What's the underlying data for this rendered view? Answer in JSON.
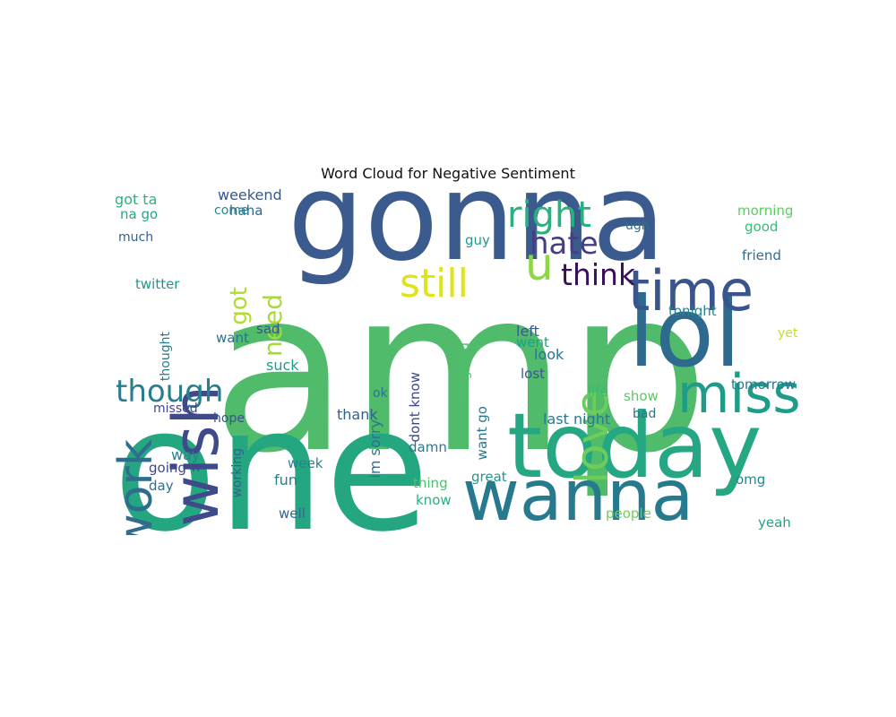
{
  "title": "Word Cloud for Negative Sentiment",
  "words": [
    {
      "text": "amp",
      "color": "#4fbb6b"
    },
    {
      "text": "one",
      "color": "#24a781"
    },
    {
      "text": "gonna",
      "color": "#3b5a8d"
    },
    {
      "text": "today",
      "color": "#26a784"
    },
    {
      "text": "wanna",
      "color": "#277a8e"
    },
    {
      "text": "lol",
      "color": "#2e6a8e"
    },
    {
      "text": "time",
      "color": "#3a548c"
    },
    {
      "text": "miss",
      "color": "#1f9c88"
    },
    {
      "text": "wish",
      "color": "#3e4a89"
    },
    {
      "text": "work",
      "color": "#2f6d8e"
    },
    {
      "text": "still",
      "color": "#dfe318"
    },
    {
      "text": "love",
      "color": "#6ccd5a"
    },
    {
      "text": "right",
      "color": "#2ab07f"
    },
    {
      "text": "hate",
      "color": "#433e85"
    },
    {
      "text": "think",
      "color": "#3a0e5a"
    },
    {
      "text": "u",
      "color": "#8ed645"
    },
    {
      "text": "though",
      "color": "#287d8e"
    },
    {
      "text": "need",
      "color": "#a5db36"
    },
    {
      "text": "got",
      "color": "#b0dd2f"
    },
    {
      "text": "going",
      "color": "#3f4788"
    },
    {
      "text": "twitter",
      "color": "#1f968b"
    },
    {
      "text": "weekend",
      "color": "#39568c"
    },
    {
      "text": "got ta",
      "color": "#2db27d"
    },
    {
      "text": "na go",
      "color": "#22a884"
    },
    {
      "text": "haha",
      "color": "#31668e"
    },
    {
      "text": "come",
      "color": "#24878e"
    },
    {
      "text": "much",
      "color": "#33628d"
    },
    {
      "text": "morning",
      "color": "#5ec962"
    },
    {
      "text": "good",
      "color": "#3aba76"
    },
    {
      "text": "friend",
      "color": "#2e6e8e"
    },
    {
      "text": "tonight",
      "color": "#25848e"
    },
    {
      "text": "tomorrow",
      "color": "#2a778e"
    },
    {
      "text": "left",
      "color": "#365c8d"
    },
    {
      "text": "went",
      "color": "#1f9f88"
    },
    {
      "text": "look",
      "color": "#2b748e"
    },
    {
      "text": "lost",
      "color": "#38588c"
    },
    {
      "text": "suck",
      "color": "#1f9e89"
    },
    {
      "text": "sad",
      "color": "#3b528b"
    },
    {
      "text": "want",
      "color": "#2c718e"
    },
    {
      "text": "life",
      "color": "#3bbb75"
    },
    {
      "text": "show",
      "color": "#5cc863"
    },
    {
      "text": "bad",
      "color": "#2d708e"
    },
    {
      "text": "last night",
      "color": "#2a788e"
    },
    {
      "text": "thank",
      "color": "#355f8d"
    },
    {
      "text": "im sorry",
      "color": "#2c738e"
    },
    {
      "text": "dont know",
      "color": "#3e4989"
    },
    {
      "text": "im going",
      "color": "#4ac16d"
    },
    {
      "text": "want go",
      "color": "#2a788e"
    },
    {
      "text": "damn",
      "color": "#2a788e"
    },
    {
      "text": "great",
      "color": "#1f978b"
    },
    {
      "text": "thing",
      "color": "#48c16e"
    },
    {
      "text": "know",
      "color": "#2ab07f"
    },
    {
      "text": "people",
      "color": "#6ece58"
    },
    {
      "text": "yeah",
      "color": "#20a386"
    },
    {
      "text": "omg",
      "color": "#23888e"
    },
    {
      "text": "guy",
      "color": "#1e9b8a"
    },
    {
      "text": "day",
      "color": "#2e6f8e"
    },
    {
      "text": "way",
      "color": "#26828e"
    },
    {
      "text": "fun",
      "color": "#26818e"
    },
    {
      "text": "week",
      "color": "#27808e"
    },
    {
      "text": "well",
      "color": "#32648e"
    },
    {
      "text": "hope",
      "color": "#3a538b"
    },
    {
      "text": "missed",
      "color": "#404688"
    },
    {
      "text": "ok",
      "color": "#2a768e"
    },
    {
      "text": "working",
      "color": "#34608d"
    },
    {
      "text": "thought",
      "color": "#29798e"
    },
    {
      "text": "ugh",
      "color": "#2c728e"
    },
    {
      "text": "n",
      "color": "#414487"
    },
    {
      "text": "yet",
      "color": "#c2df23"
    }
  ]
}
